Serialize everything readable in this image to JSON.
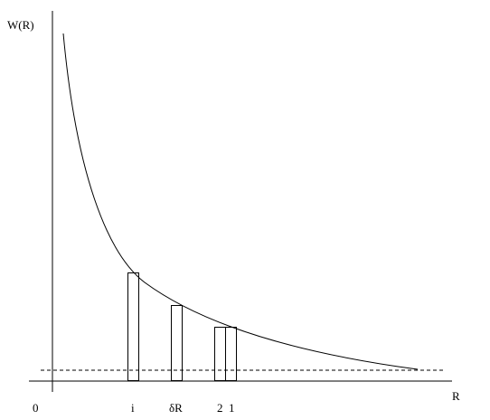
{
  "axes": {
    "y_label": "W(R)",
    "x_label": "R",
    "origin": "0"
  },
  "ticks": [
    "i",
    "δR",
    "2",
    "1"
  ]
}
